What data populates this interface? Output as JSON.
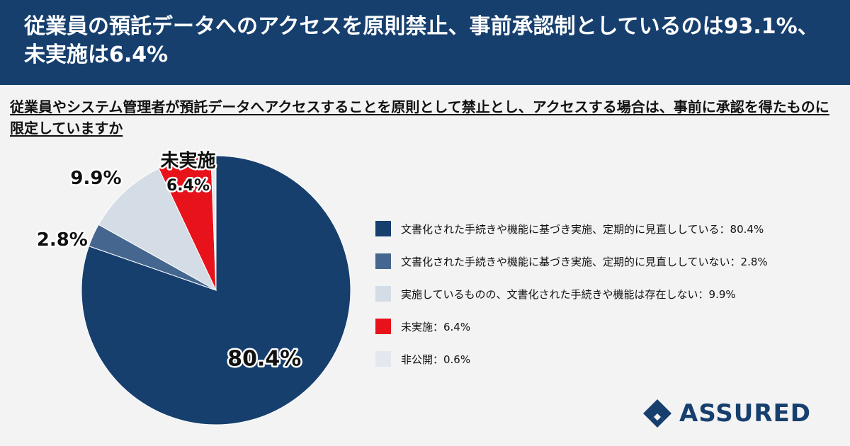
{
  "header": {
    "title": "従業員の預託データへのアクセスを原則禁止、事前承認制としているのは93.1%、未実施は6.4%"
  },
  "question": "従業員やシステム管理者が預託データへアクセスすることを原則として禁止とし、アクセスする場合は、事前に承認を得たものに限定していますか",
  "chart_data": {
    "type": "pie",
    "slices": [
      {
        "name": "文書化された手続きや機能に基づき実施、定期的に見直ししている",
        "value": 80.4,
        "color": "#163f6e",
        "label": "80.4%"
      },
      {
        "name": "文書化された手続きや機能に基づき実施、定期的に見直ししていない",
        "value": 2.8,
        "color": "#44668f",
        "label": "2.8%"
      },
      {
        "name": "実施しているものの、文書化された手続きや機能は存在しない",
        "value": 9.9,
        "color": "#d4dce6",
        "label": "9.9%"
      },
      {
        "name": "未実施",
        "value": 6.4,
        "color": "#e8121a",
        "label": "6.4%",
        "label_title": "未実施"
      },
      {
        "name": "非公開",
        "value": 0.6,
        "color": "#e3e8ef",
        "label": ""
      }
    ],
    "legend": [
      "文書化された手続きや機能に基づき実施、定期的に見直ししている：80.4%",
      "文書化された手続きや機能に基づき実施、定期的に見直ししていない：2.8%",
      "実施しているものの、文書化された手続きや機能は存在しない：9.9%",
      "未実施：6.4%",
      "非公開：0.6%"
    ],
    "legend_position": "right"
  },
  "logo": {
    "text": "ASSURED"
  }
}
